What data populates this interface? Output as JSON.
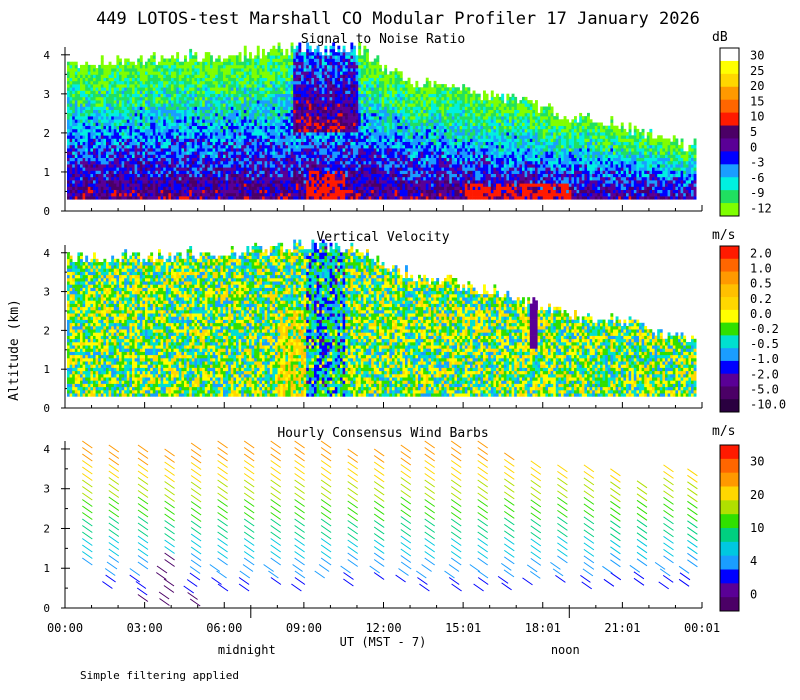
{
  "title": "449 LOTOS-test Marshall CO Modular Profiler 17 January 2026",
  "footer_note": "Simple filtering applied",
  "y_axis_label": "Altitude (km)",
  "x_axis": {
    "label": "UT  (MST - 7)",
    "ticks": [
      "00:00",
      "03:00",
      "06:00",
      "09:00",
      "12:00",
      "15:01",
      "18:01",
      "21:01",
      "00:01"
    ],
    "tick_hours": [
      0,
      3,
      6,
      9,
      12,
      15,
      18,
      21,
      24
    ],
    "markers": [
      {
        "label": "midnight",
        "hour": 7
      },
      {
        "label": "noon",
        "hour": 19
      }
    ],
    "range_hours": [
      0,
      24
    ]
  },
  "chart_data": [
    {
      "type": "heatmap",
      "title": "Signal to Noise Ratio",
      "ylabel": "Altitude (km)",
      "ylim": [
        0,
        4.2
      ],
      "yticks": [
        0,
        1,
        2,
        3,
        4
      ],
      "units": "dB",
      "colorbar": {
        "labels": [
          "30",
          "25",
          "20",
          "15",
          "10",
          "5",
          "0",
          "-3",
          "-6",
          "-9",
          "-12"
        ],
        "colors": [
          "#ffffff",
          "#ffff00",
          "#ffd700",
          "#ff9900",
          "#ff6600",
          "#ff1a00",
          "#4b0066",
          "#5a0096",
          "#0000ff",
          "#1a9dff",
          "#00f0e0",
          "#20e060",
          "#7fff00"
        ]
      },
      "data_top_km": {
        "hours": [
          0.5,
          3,
          6,
          9,
          11,
          13,
          15,
          17,
          19,
          21,
          23.5
        ],
        "km": [
          3.75,
          3.85,
          3.95,
          4.15,
          4.1,
          3.3,
          3.05,
          2.8,
          2.4,
          2.15,
          1.65
        ]
      },
      "lowest_gate_km": 0.3
    },
    {
      "type": "heatmap",
      "title": "Vertical Velocity",
      "ylabel": "Altitude (km)",
      "ylim": [
        0,
        4.2
      ],
      "yticks": [
        0,
        1,
        2,
        3,
        4
      ],
      "units": "m/s",
      "colorbar": {
        "labels": [
          "2.0",
          "1.0",
          "0.5",
          "0.2",
          "0.0",
          "-0.2",
          "-0.5",
          "-1.0",
          "-2.0",
          "-5.0",
          "-10.0"
        ],
        "colors": [
          "#ff1a00",
          "#ff6600",
          "#ff9900",
          "#ffc000",
          "#ffd700",
          "#ffff00",
          "#30e000",
          "#00e0d0",
          "#1a9dff",
          "#0000ff",
          "#5a0096",
          "#4b0066",
          "#2a0040"
        ]
      },
      "data_top_km": {
        "hours": [
          0.5,
          3,
          6,
          9,
          11,
          13,
          15,
          17,
          19,
          21,
          23.5
        ],
        "km": [
          3.85,
          3.9,
          3.95,
          4.2,
          4.0,
          3.4,
          3.15,
          2.8,
          2.35,
          2.2,
          1.7
        ]
      },
      "lowest_gate_km": 0.3
    },
    {
      "type": "scatter",
      "title": "Hourly Consensus Wind Barbs",
      "ylabel": "Altitude (km)",
      "ylim": [
        0,
        4.2
      ],
      "yticks": [
        0,
        1,
        2,
        3,
        4
      ],
      "units": "m/s",
      "colorbar": {
        "labels": [
          "30",
          "20",
          "10",
          "4",
          "0"
        ],
        "colors": [
          "#ff1a00",
          "#ff6600",
          "#ff9900",
          "#ffd700",
          "#b0e000",
          "#30e000",
          "#00d080",
          "#00c8e0",
          "#1a9dff",
          "#0000ff",
          "#5a0096",
          "#4b0066"
        ]
      },
      "barb_hours": [
        0.5,
        1.5,
        2.6,
        3.6,
        4.6,
        5.6,
        6.6,
        7.6,
        8.5,
        9.5,
        10.5,
        11.5,
        12.5,
        13.4,
        14.4,
        15.4,
        16.4,
        17.4,
        18.4,
        19.4,
        20.4,
        21.4,
        22.4,
        23.3
      ],
      "barb_top_km": [
        4.2,
        4.1,
        4.1,
        4.0,
        4.15,
        4.2,
        4.2,
        4.2,
        4.2,
        4.2,
        4.0,
        4.0,
        4.1,
        4.2,
        4.2,
        4.2,
        3.9,
        3.7,
        3.6,
        3.6,
        3.5,
        3.2,
        3.6,
        3.5
      ],
      "barb_bottom_km": [
        1.1,
        0.6,
        0.2,
        0.1,
        0.2,
        0.5,
        0.6,
        0.7,
        0.5,
        0.8,
        0.6,
        0.8,
        0.7,
        0.6,
        0.6,
        0.6,
        0.6,
        0.6,
        0.7,
        0.6,
        0.6,
        0.6,
        0.6,
        0.6
      ]
    }
  ]
}
